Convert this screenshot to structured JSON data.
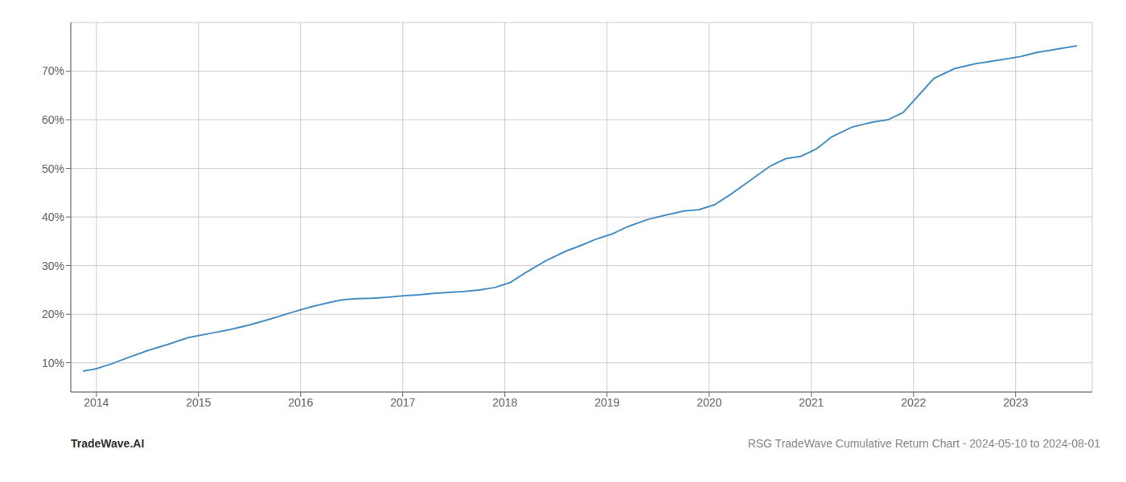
{
  "chart_data": {
    "type": "line",
    "x": [
      2013.87,
      2014.0,
      2014.15,
      2014.3,
      2014.5,
      2014.7,
      2014.9,
      2015.1,
      2015.3,
      2015.5,
      2015.7,
      2015.9,
      2016.1,
      2016.3,
      2016.42,
      2016.55,
      2016.7,
      2016.85,
      2017.0,
      2017.15,
      2017.3,
      2017.45,
      2017.6,
      2017.75,
      2017.9,
      2018.05,
      2018.2,
      2018.4,
      2018.6,
      2018.75,
      2018.9,
      2019.05,
      2019.2,
      2019.4,
      2019.6,
      2019.75,
      2019.9,
      2020.05,
      2020.2,
      2020.4,
      2020.6,
      2020.75,
      2020.9,
      2021.05,
      2021.2,
      2021.4,
      2021.6,
      2021.75,
      2021.9,
      2022.05,
      2022.2,
      2022.4,
      2022.6,
      2022.75,
      2022.9,
      2023.05,
      2023.2,
      2023.4,
      2023.6
    ],
    "values": [
      8.3,
      8.8,
      9.8,
      11.0,
      12.5,
      13.8,
      15.2,
      16.0,
      16.8,
      17.8,
      19.0,
      20.3,
      21.5,
      22.5,
      23.0,
      23.2,
      23.3,
      23.5,
      23.8,
      24.0,
      24.3,
      24.5,
      24.7,
      25.0,
      25.5,
      26.5,
      28.5,
      31.0,
      33.0,
      34.2,
      35.5,
      36.5,
      38.0,
      39.5,
      40.5,
      41.2,
      41.5,
      42.5,
      44.5,
      47.5,
      50.5,
      52.0,
      52.5,
      54.0,
      56.5,
      58.5,
      59.5,
      60.0,
      61.5,
      65.0,
      68.5,
      70.5,
      71.5,
      72.0,
      72.5,
      73.0,
      73.8,
      74.5,
      75.2
    ],
    "color": "#4a90c4",
    "xlim": [
      2013.75,
      2023.75
    ],
    "xticks": [
      2014,
      2015,
      2016,
      2017,
      2018,
      2019,
      2020,
      2021,
      2022,
      2023
    ],
    "ylim": [
      4,
      80
    ],
    "yticks": [
      {
        "value": 10,
        "label": "10%"
      },
      {
        "value": 20,
        "label": "20%"
      },
      {
        "value": 30,
        "label": "30%"
      },
      {
        "value": 40,
        "label": "40%"
      },
      {
        "value": 50,
        "label": "50%"
      },
      {
        "value": 60,
        "label": "60%"
      },
      {
        "value": 70,
        "label": "70%"
      }
    ],
    "grid": true,
    "annotations": [
      "TradeWave.AI",
      "RSG TradeWave Cumulative Return Chart - 2024-05-10 to 2024-08-01"
    ]
  }
}
